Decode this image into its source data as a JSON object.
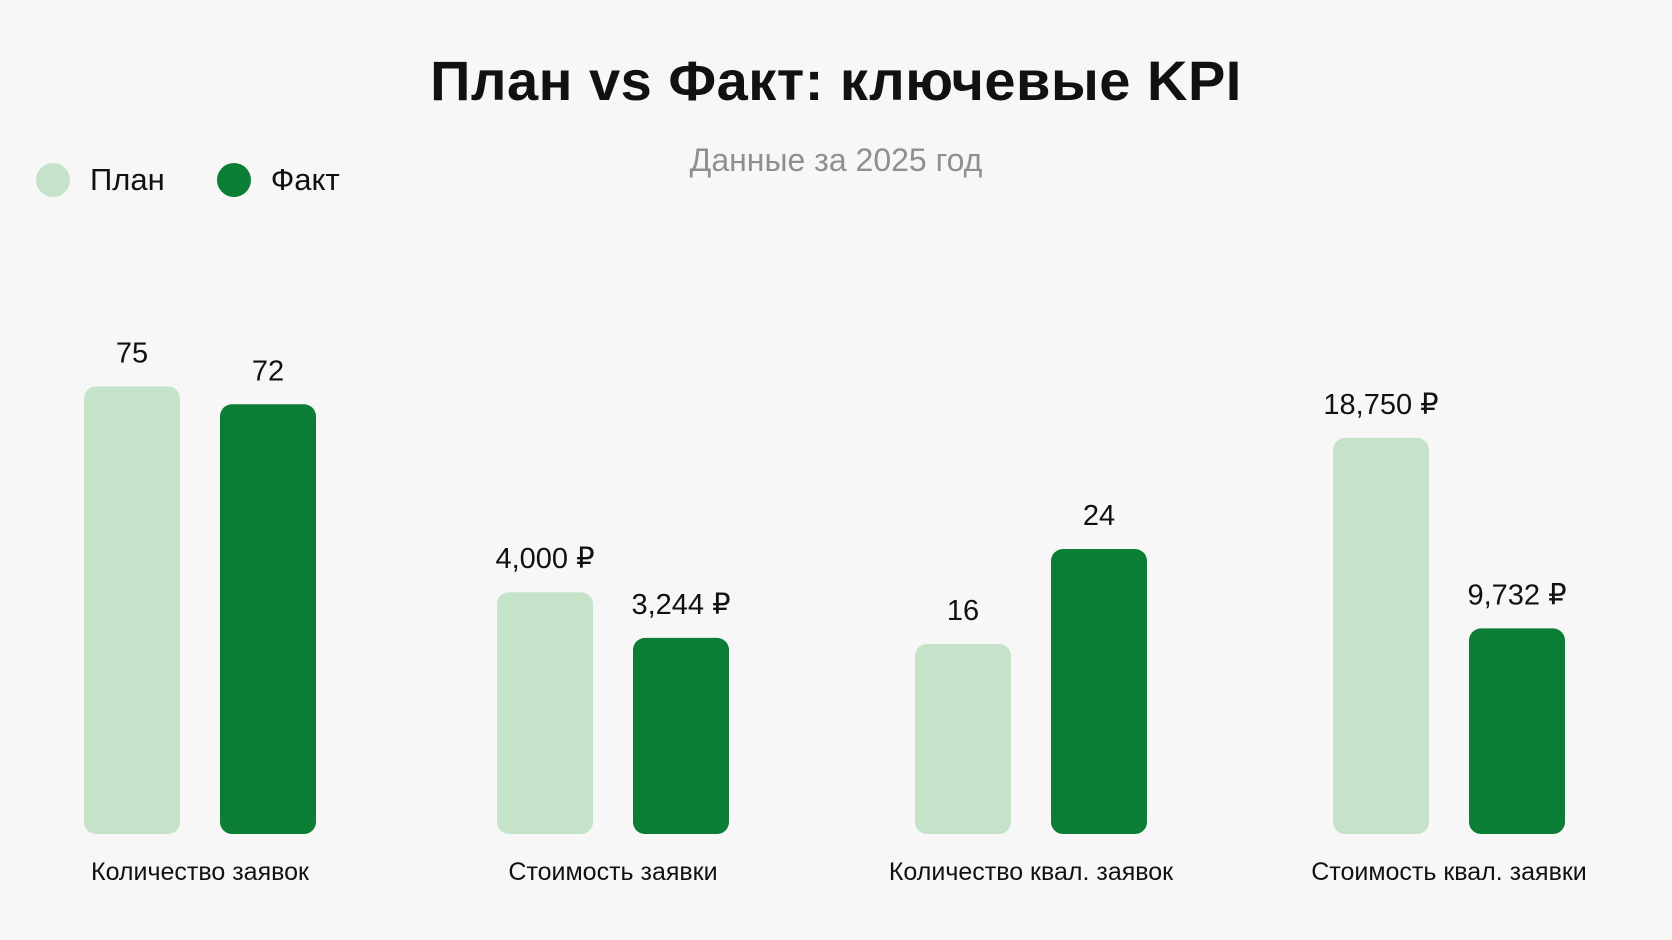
{
  "chart_data": {
    "type": "bar",
    "title": "План vs Факт: ключевые KPI",
    "subtitle": "Данные за 2025 год",
    "legend_position": "top-left",
    "grid": false,
    "categories": [
      "Количество заявок",
      "Стоимость заявки",
      "Количество квал. заявок",
      "Стоимость квал. заявки"
    ],
    "series": [
      {
        "name": "План",
        "color": "#c5e3c8",
        "values": [
          75,
          4000,
          16,
          18750
        ],
        "value_labels": [
          "75",
          "4,000 ₽",
          "16",
          "18,750 ₽"
        ]
      },
      {
        "name": "Факт",
        "color": "#0b7d34",
        "values": [
          72,
          3244,
          24,
          9732
        ],
        "value_labels": [
          "72",
          "3,244 ₽",
          "24",
          "9,732 ₽"
        ]
      }
    ],
    "group_max": [
      94.5,
      9330,
      47.5,
      26700
    ]
  }
}
